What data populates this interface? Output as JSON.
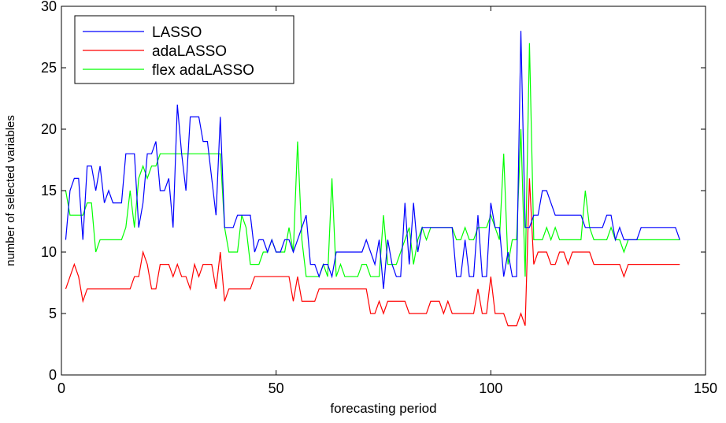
{
  "chart_data": {
    "type": "line",
    "xlabel": "forecasting period",
    "ylabel": "number of selected variables",
    "xlim": [
      0,
      150
    ],
    "ylim": [
      0,
      30
    ],
    "xticks": [
      0,
      50,
      100,
      150
    ],
    "yticks": [
      0,
      5,
      10,
      15,
      20,
      25,
      30
    ],
    "grid": false,
    "legend_position": "top-left",
    "x": [
      1,
      2,
      3,
      4,
      5,
      6,
      7,
      8,
      9,
      10,
      11,
      12,
      13,
      14,
      15,
      16,
      17,
      18,
      19,
      20,
      21,
      22,
      23,
      24,
      25,
      26,
      27,
      28,
      29,
      30,
      31,
      32,
      33,
      34,
      35,
      36,
      37,
      38,
      39,
      40,
      41,
      42,
      43,
      44,
      45,
      46,
      47,
      48,
      49,
      50,
      51,
      52,
      53,
      54,
      55,
      56,
      57,
      58,
      59,
      60,
      61,
      62,
      63,
      64,
      65,
      66,
      67,
      68,
      69,
      70,
      71,
      72,
      73,
      74,
      75,
      76,
      77,
      78,
      79,
      80,
      81,
      82,
      83,
      84,
      85,
      86,
      87,
      88,
      89,
      90,
      91,
      92,
      93,
      94,
      95,
      96,
      97,
      98,
      99,
      100,
      101,
      102,
      103,
      104,
      105,
      106,
      107,
      108,
      109,
      110,
      111,
      112,
      113,
      114,
      115,
      116,
      117,
      118,
      119,
      120,
      121,
      122,
      123,
      124,
      125,
      126,
      127,
      128,
      129,
      130,
      131,
      132,
      133,
      134,
      135,
      136,
      137,
      138,
      139,
      140,
      141,
      142,
      143,
      144
    ],
    "series": [
      {
        "name": "LASSO",
        "color": "#0000ff",
        "values": [
          11,
          15,
          16,
          16,
          11,
          17,
          17,
          15,
          17,
          14,
          15,
          14,
          14,
          14,
          18,
          18,
          18,
          12,
          14,
          18,
          18,
          19,
          15,
          15,
          16,
          12,
          22,
          18,
          15,
          21,
          21,
          21,
          19,
          19,
          16,
          13,
          21,
          12,
          12,
          12,
          13,
          13,
          13,
          13,
          10,
          11,
          11,
          10,
          11,
          10,
          10,
          11,
          11,
          10,
          11,
          12,
          13,
          9,
          9,
          8,
          9,
          9,
          8,
          10,
          10,
          10,
          10,
          10,
          10,
          10,
          11,
          10,
          9,
          11,
          7,
          11,
          9,
          8,
          8,
          14,
          9,
          14,
          10,
          12,
          12,
          12,
          12,
          12,
          12,
          12,
          12,
          8,
          8,
          11,
          8,
          8,
          13,
          8,
          8,
          14,
          12,
          12,
          8,
          10,
          8,
          8,
          28,
          12,
          12,
          13,
          13,
          15,
          15,
          14,
          13,
          13,
          13,
          13,
          13,
          13,
          13,
          12,
          12,
          12,
          12,
          12,
          13,
          13,
          11,
          12,
          11,
          11,
          11,
          11,
          12,
          12,
          12,
          12,
          12,
          12,
          12,
          12,
          12,
          11
        ]
      },
      {
        "name": "adaLASSO",
        "color": "#ff0000",
        "values": [
          7,
          8,
          9,
          8,
          6,
          7,
          7,
          7,
          7,
          7,
          7,
          7,
          7,
          7,
          7,
          7,
          8,
          8,
          10,
          9,
          7,
          7,
          9,
          9,
          9,
          8,
          9,
          8,
          8,
          7,
          9,
          8,
          9,
          9,
          9,
          7,
          10,
          6,
          7,
          7,
          7,
          7,
          7,
          7,
          8,
          8,
          8,
          8,
          8,
          8,
          8,
          8,
          8,
          6,
          8,
          6,
          6,
          6,
          6,
          7,
          7,
          7,
          7,
          7,
          7,
          7,
          7,
          7,
          7,
          7,
          7,
          5,
          5,
          6,
          5,
          6,
          6,
          6,
          6,
          6,
          5,
          5,
          5,
          5,
          5,
          6,
          6,
          6,
          5,
          6,
          5,
          5,
          5,
          5,
          5,
          5,
          7,
          5,
          5,
          8,
          5,
          5,
          5,
          4,
          4,
          4,
          5,
          4,
          16,
          9,
          10,
          10,
          10,
          9,
          9,
          10,
          10,
          9,
          10,
          10,
          10,
          10,
          10,
          9,
          9,
          9,
          9,
          9,
          9,
          9,
          8,
          9,
          9,
          9,
          9,
          9,
          9,
          9,
          9,
          9,
          9,
          9,
          9,
          9
        ]
      },
      {
        "name": "flex adaLASSO",
        "color": "#00ff00",
        "values": [
          15,
          13,
          13,
          13,
          13,
          14,
          14,
          10,
          11,
          11,
          11,
          11,
          11,
          11,
          12,
          15,
          12,
          16,
          17,
          16,
          17,
          17,
          18,
          18,
          18,
          18,
          18,
          18,
          18,
          18,
          18,
          18,
          18,
          18,
          18,
          18,
          18,
          12,
          10,
          10,
          10,
          13,
          12,
          9,
          9,
          9,
          10,
          10,
          11,
          10,
          10,
          10,
          12,
          10,
          19,
          11,
          8,
          8,
          8,
          8,
          9,
          8,
          16,
          8,
          9,
          8,
          8,
          8,
          8,
          9,
          9,
          8,
          8,
          8,
          13,
          9,
          9,
          9,
          10,
          11,
          12,
          9,
          11,
          12,
          11,
          12,
          12,
          12,
          12,
          12,
          12,
          11,
          11,
          12,
          11,
          11,
          12,
          12,
          12,
          13,
          12,
          11,
          18,
          9,
          11,
          11,
          20,
          8,
          27,
          11,
          11,
          11,
          12,
          11,
          12,
          11,
          11,
          11,
          11,
          11,
          11,
          15,
          12,
          11,
          11,
          11,
          11,
          12,
          11,
          11,
          10,
          11,
          11,
          11,
          11,
          11,
          11,
          11,
          11,
          11,
          11,
          11,
          11,
          11
        ]
      }
    ]
  }
}
